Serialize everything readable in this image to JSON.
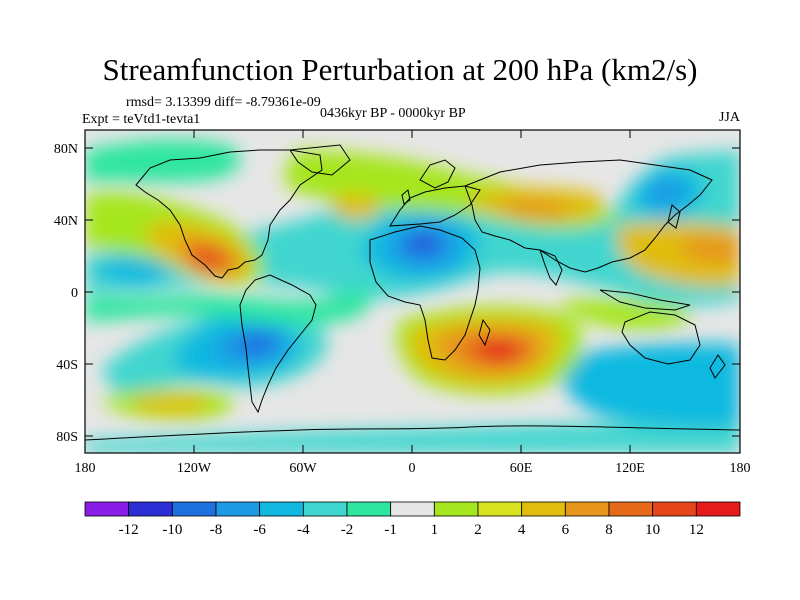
{
  "title": "Streamfunction Perturbation at 200 hPa (km2/s)",
  "stats": "rmsd= 3.13399 diff= -8.79361e-09",
  "experiment": "Expt = teVtd1-tevta1",
  "period": "0436kyr BP - 0000kyr BP",
  "season": "JJA",
  "axes": {
    "lat_ticks": [
      "80N",
      "40N",
      "0",
      "40S",
      "80S"
    ],
    "lon_ticks": [
      "180",
      "120W",
      "60W",
      "0",
      "60E",
      "120E",
      "180"
    ]
  },
  "colorbar": {
    "labels": [
      "-12",
      "-10",
      "-8",
      "-6",
      "-4",
      "-2",
      "-1",
      "1",
      "2",
      "4",
      "6",
      "8",
      "10",
      "12"
    ],
    "colors": [
      "#8a1ee6",
      "#2d2fd6",
      "#1e6fe0",
      "#1d9ae6",
      "#11b9e0",
      "#3fd6cf",
      "#2fe6a0",
      "#e6e6e6",
      "#a6e61e",
      "#d9e21e",
      "#e0bd0f",
      "#e6961a",
      "#e66a1a",
      "#e6441a",
      "#e61a1a"
    ]
  },
  "chart_data": {
    "type": "heatmap",
    "title": "Streamfunction Perturbation at 200 hPa (km2/s)",
    "units": "km2/s",
    "xlim": [
      -180,
      180
    ],
    "ylim": [
      -90,
      90
    ],
    "levels": [
      -12,
      -10,
      -8,
      -6,
      -4,
      -2,
      -1,
      1,
      2,
      4,
      6,
      8,
      10,
      12
    ],
    "features": [
      {
        "name": "southern-africa-high",
        "lon": 45,
        "lat": -27,
        "value": 12
      },
      {
        "name": "mexico-high",
        "lon": -112,
        "lat": 26,
        "value": 10
      },
      {
        "name": "north-pacific-high",
        "lon": 165,
        "lat": 28,
        "value": 8
      },
      {
        "name": "central-asia-high",
        "lon": 65,
        "lat": 45,
        "value": 6
      },
      {
        "name": "north-atlantic-high",
        "lon": -20,
        "lat": 46,
        "value": 4
      },
      {
        "name": "south-pacific-high",
        "lon": -150,
        "lat": -55,
        "value": 4
      },
      {
        "name": "sahara-low",
        "lon": 5,
        "lat": 30,
        "value": -10
      },
      {
        "name": "south-america-low",
        "lon": -85,
        "lat": -20,
        "value": -8
      },
      {
        "name": "east-asia-low",
        "lon": 125,
        "lat": 55,
        "value": -4
      },
      {
        "name": "southern-ocean-low",
        "lon": -10,
        "lat": -62,
        "value": -2
      }
    ]
  }
}
